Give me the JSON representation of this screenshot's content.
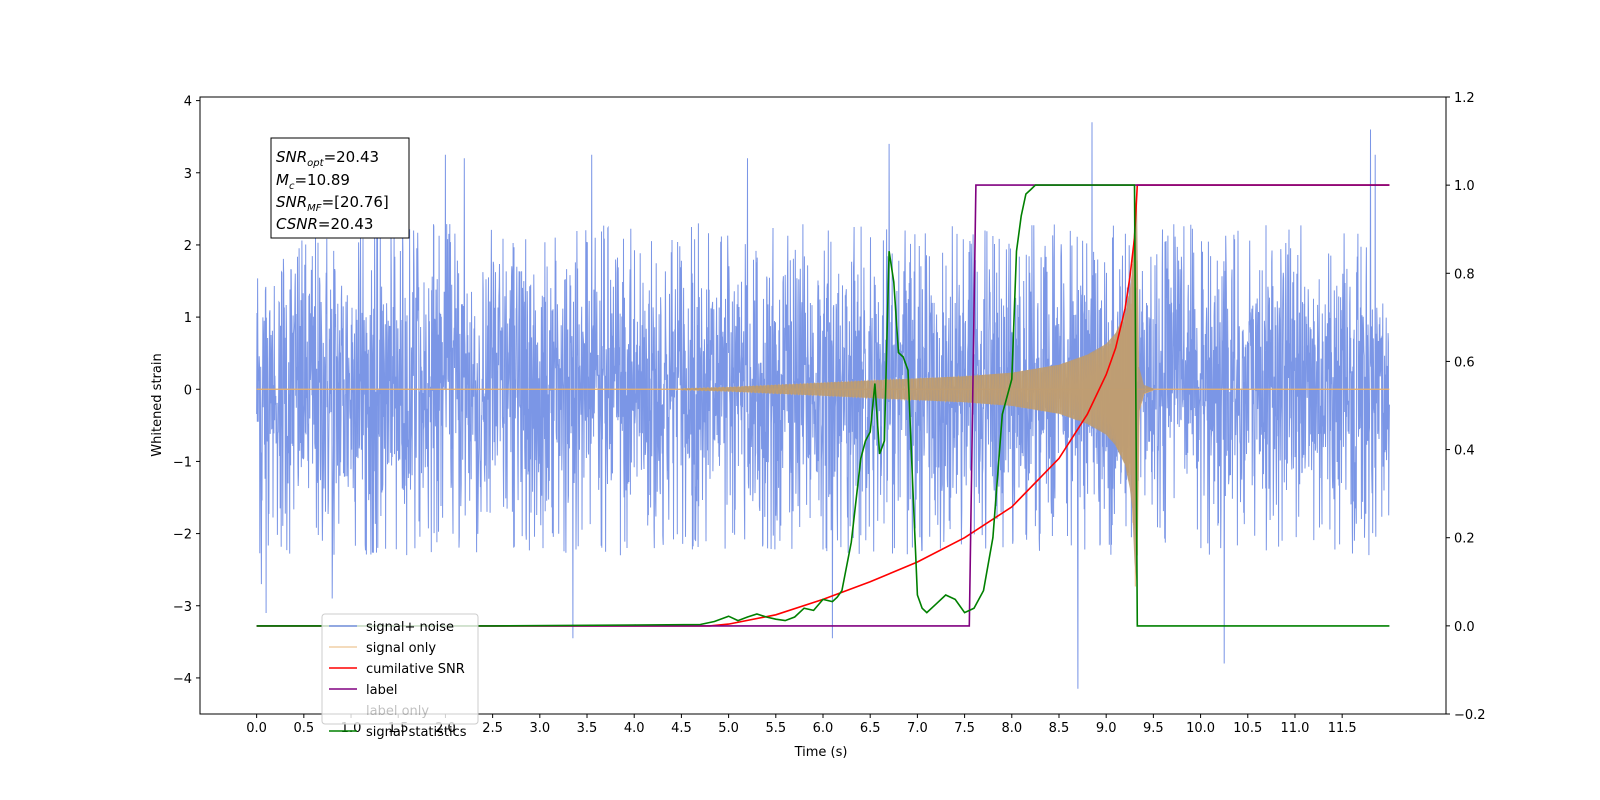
{
  "chart_data": {
    "type": "line",
    "xlabel": "Time (s)",
    "ylabel": "Whitened strain",
    "xlim": [
      -0.6,
      12.6
    ],
    "ylim_left": [
      -4.5,
      4.05
    ],
    "ylim_right": [
      -0.2,
      1.2
    ],
    "x_ticks": [
      "0.0",
      "0.5",
      "1.0",
      "1.5",
      "2.0",
      "2.5",
      "3.0",
      "3.5",
      "4.0",
      "4.5",
      "5.0",
      "5.5",
      "6.0",
      "6.5",
      "7.0",
      "7.5",
      "8.0",
      "8.5",
      "9.0",
      "9.5",
      "10.0",
      "10.5",
      "11.0",
      "11.5"
    ],
    "y_ticks_left": [
      "4",
      "3",
      "2",
      "1",
      "0",
      "−1",
      "−2",
      "−3",
      "−4"
    ],
    "y_ticks_right": [
      "1.2",
      "1.0",
      "0.8",
      "0.6",
      "0.4",
      "0.2",
      "0.0",
      "−0.2"
    ],
    "colors": {
      "noise": "#7b96e6",
      "signal": "#e8b06a",
      "signal_fill": "#b89a72",
      "snr": "#ff0000",
      "label": "#800080",
      "statistics": "#008000"
    },
    "annotation": {
      "snr_opt": {
        "sym": "SNR",
        "sub": "opt",
        "val": "=20.43"
      },
      "mc": {
        "sym": "M",
        "sub": "c",
        "val": "=10.89"
      },
      "snr_mf": {
        "sym": "SNR",
        "sub": "MF",
        "val": "=[20.76]"
      },
      "csnr": {
        "sym": "CSNR",
        "val": "=20.43"
      }
    },
    "legend": {
      "position": "lower-left",
      "entries": [
        "signal+ noise",
        "signal only",
        "cumilative SNR",
        "label",
        "label only",
        "signal statistics"
      ]
    },
    "series": [
      {
        "name": "signal+ noise",
        "axis": "left",
        "x_range": [
          0.0,
          12.0
        ],
        "amplitude_typical": [
          -2.3,
          2.3
        ],
        "spikes": [
          {
            "x": 0.05,
            "y": -2.7
          },
          {
            "x": 0.1,
            "y": 2.15
          },
          {
            "x": 0.1,
            "y": -3.1
          },
          {
            "x": 0.8,
            "y": -2.9
          },
          {
            "x": 2.0,
            "y": 3.25
          },
          {
            "x": 2.2,
            "y": 3.2
          },
          {
            "x": 3.35,
            "y": -3.45
          },
          {
            "x": 3.55,
            "y": 3.25
          },
          {
            "x": 5.2,
            "y": 3.2
          },
          {
            "x": 6.1,
            "y": -3.45
          },
          {
            "x": 6.7,
            "y": 3.4
          },
          {
            "x": 8.7,
            "y": -4.15
          },
          {
            "x": 8.85,
            "y": 3.7
          },
          {
            "x": 10.25,
            "y": -3.8
          },
          {
            "x": 11.8,
            "y": 3.6
          },
          {
            "x": 11.85,
            "y": 3.25
          }
        ]
      },
      {
        "name": "signal only",
        "axis": "left",
        "x": [
          4.5,
          5.0,
          5.5,
          6.0,
          6.5,
          7.0,
          7.5,
          8.0,
          8.5,
          8.8,
          9.0,
          9.1,
          9.2,
          9.27,
          9.3,
          9.32,
          9.35,
          9.4,
          9.5
        ],
        "envelope": [
          0.01,
          0.03,
          0.06,
          0.09,
          0.12,
          0.15,
          0.18,
          0.23,
          0.34,
          0.48,
          0.63,
          0.78,
          1.05,
          1.5,
          2.4,
          3.2,
          0.3,
          0.06,
          0.01
        ]
      },
      {
        "name": "cumilative SNR",
        "axis": "right",
        "x": [
          0.0,
          4.8,
          5.0,
          5.5,
          6.0,
          6.5,
          7.0,
          7.5,
          8.0,
          8.5,
          8.8,
          9.0,
          9.1,
          9.2,
          9.25,
          9.3,
          9.33,
          9.35,
          12.0
        ],
        "y": [
          0.0,
          0.0,
          0.004,
          0.025,
          0.06,
          0.1,
          0.145,
          0.2,
          0.27,
          0.38,
          0.48,
          0.57,
          0.63,
          0.72,
          0.79,
          0.88,
          1.0,
          1.0,
          1.0
        ]
      },
      {
        "name": "label",
        "axis": "right",
        "x": [
          0.0,
          7.55,
          7.62,
          9.35,
          9.36,
          12.0
        ],
        "y": [
          0.0,
          0.0,
          1.0,
          1.0,
          1.0,
          1.0
        ]
      },
      {
        "name": "signal statistics",
        "axis": "right",
        "x": [
          0.0,
          2.5,
          4.0,
          4.7,
          4.85,
          5.0,
          5.1,
          5.2,
          5.3,
          5.4,
          5.5,
          5.6,
          5.7,
          5.8,
          5.9,
          6.0,
          6.1,
          6.15,
          6.2,
          6.3,
          6.4,
          6.45,
          6.5,
          6.55,
          6.6,
          6.65,
          6.7,
          6.75,
          6.8,
          6.85,
          6.9,
          6.95,
          7.0,
          7.05,
          7.1,
          7.2,
          7.3,
          7.4,
          7.5,
          7.6,
          7.7,
          7.8,
          7.9,
          8.0,
          8.05,
          8.1,
          8.15,
          8.2,
          8.25,
          8.3,
          8.4,
          8.5,
          8.7,
          9.0,
          9.3,
          9.33,
          9.36,
          10.0,
          12.0
        ],
        "y": [
          0.0,
          0.0,
          0.002,
          0.003,
          0.01,
          0.022,
          0.012,
          0.02,
          0.027,
          0.02,
          0.015,
          0.012,
          0.02,
          0.04,
          0.035,
          0.06,
          0.055,
          0.065,
          0.08,
          0.19,
          0.38,
          0.42,
          0.44,
          0.55,
          0.39,
          0.42,
          0.85,
          0.78,
          0.62,
          0.61,
          0.58,
          0.32,
          0.07,
          0.04,
          0.03,
          0.05,
          0.07,
          0.06,
          0.03,
          0.04,
          0.08,
          0.2,
          0.48,
          0.56,
          0.85,
          0.93,
          0.98,
          0.99,
          1.0,
          1.0,
          1.0,
          1.0,
          1.0,
          1.0,
          1.0,
          0.0,
          0.0,
          0.0,
          0.0
        ]
      }
    ]
  }
}
